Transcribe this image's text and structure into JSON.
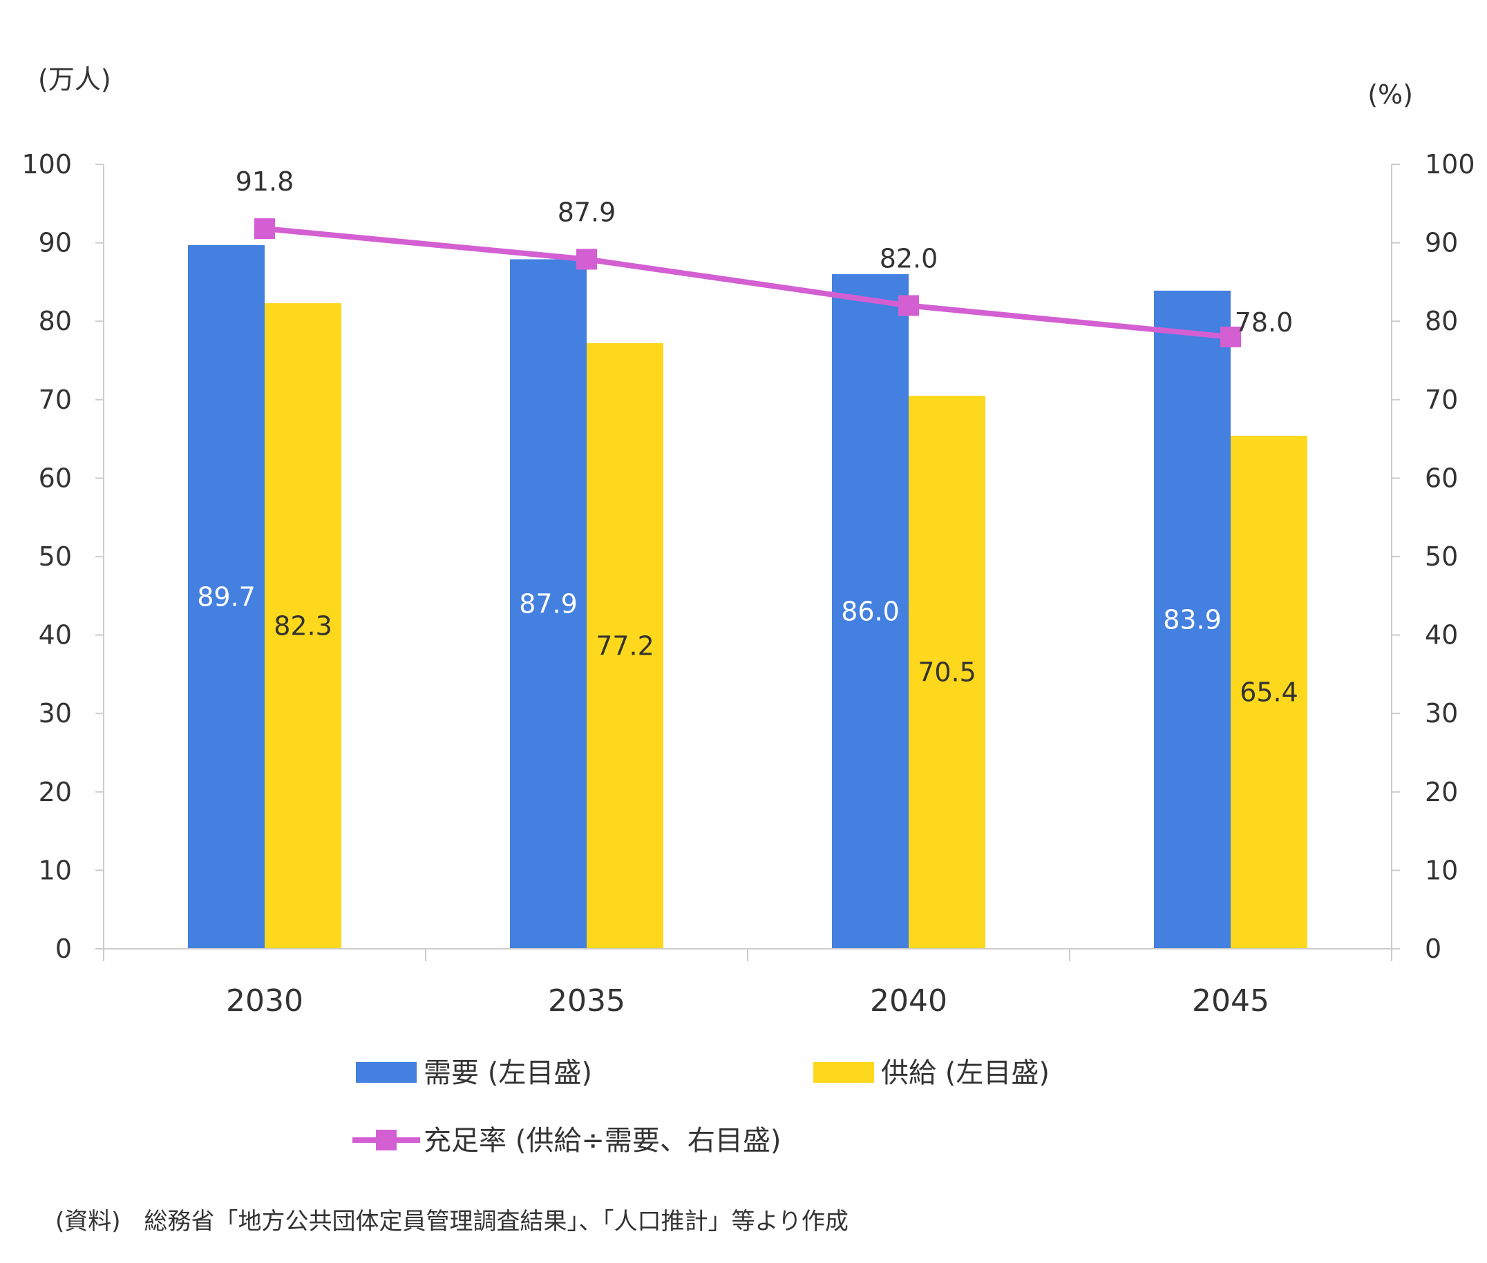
{
  "chart_data": {
    "type": "bar",
    "categories": [
      "2030",
      "2035",
      "2040",
      "2045"
    ],
    "series": [
      {
        "name": "需要 (左目盛)",
        "type": "bar",
        "axis": "left",
        "color": "#4480e0",
        "label_color": "#ffffff",
        "values": [
          89.7,
          87.9,
          86.0,
          83.9
        ]
      },
      {
        "name": "供給 (左目盛)",
        "type": "bar",
        "axis": "left",
        "color": "#fdd81c",
        "label_color": "#333333",
        "values": [
          82.3,
          77.2,
          70.5,
          65.4
        ]
      },
      {
        "name": "充足率 (供給÷需要、右目盛)",
        "type": "line",
        "axis": "right",
        "color": "#d35fd3",
        "label_color": "#333333",
        "values": [
          91.8,
          87.9,
          82.0,
          78.0
        ]
      }
    ],
    "left_axis": {
      "unit": "(万人)",
      "range": [
        0,
        100
      ],
      "ticks": [
        0,
        10,
        20,
        30,
        40,
        50,
        60,
        70,
        80,
        90,
        100
      ]
    },
    "right_axis": {
      "unit": "(%)",
      "range": [
        0,
        100
      ],
      "ticks": [
        0,
        10,
        20,
        30,
        40,
        50,
        60,
        70,
        80,
        90,
        100
      ]
    },
    "grid": false,
    "legend_position": "bottom",
    "value_labels": {
      "s0": [
        "89.7",
        "87.9",
        "86.0",
        "83.9"
      ],
      "s1": [
        "82.3",
        "77.2",
        "70.5",
        "65.4"
      ],
      "s2": [
        "91.8",
        "87.9",
        "82.0",
        "78.0"
      ]
    }
  },
  "footnote": "(資料)　総務省「地方公共団体定員管理調査結果」、「人口推計」等より作成"
}
